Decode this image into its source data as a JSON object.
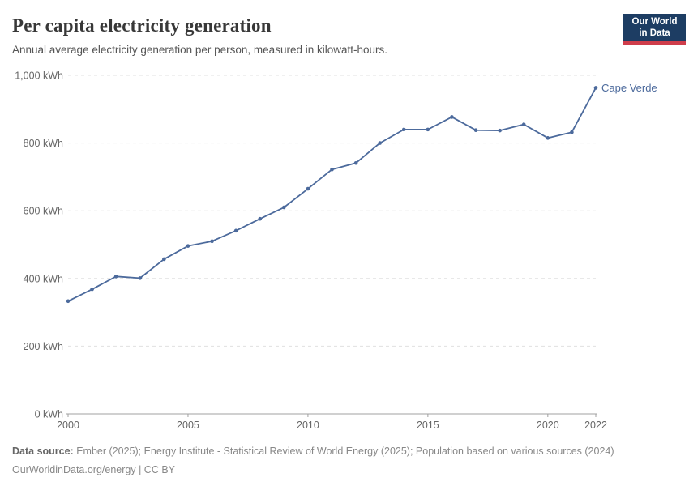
{
  "header": {
    "title": "Per capita electricity generation",
    "subtitle": "Annual average electricity generation per person, measured in kilowatt-hours.",
    "logo": {
      "line1": "Our World",
      "line2": "in Data"
    }
  },
  "chart_data": {
    "type": "line",
    "title": "Per capita electricity generation",
    "xlabel": "",
    "ylabel": "kWh",
    "xlim": [
      2000,
      2022
    ],
    "ylim": [
      0,
      1000
    ],
    "grid": "horizontal-dashed",
    "legend_position": "end-of-line-label",
    "series": [
      {
        "name": "Cape Verde",
        "color": "#4C6A9C",
        "x": [
          2000,
          2001,
          2002,
          2003,
          2004,
          2005,
          2006,
          2007,
          2008,
          2009,
          2010,
          2011,
          2012,
          2013,
          2014,
          2015,
          2016,
          2017,
          2018,
          2019,
          2020,
          2021,
          2022
        ],
        "values": [
          333,
          368,
          406,
          401,
          457,
          496,
          510,
          541,
          576,
          610,
          665,
          722,
          741,
          800,
          840,
          840,
          877,
          838,
          837,
          855,
          815,
          832,
          963
        ]
      }
    ],
    "yticks": [
      {
        "value": 0,
        "label": "0 kWh"
      },
      {
        "value": 200,
        "label": "200 kWh"
      },
      {
        "value": 400,
        "label": "400 kWh"
      },
      {
        "value": 600,
        "label": "600 kWh"
      },
      {
        "value": 800,
        "label": "800 kWh"
      },
      {
        "value": 1000,
        "label": "1,000 kWh"
      }
    ],
    "xticks": [
      {
        "value": 2000,
        "label": "2000"
      },
      {
        "value": 2005,
        "label": "2005"
      },
      {
        "value": 2010,
        "label": "2010"
      },
      {
        "value": 2015,
        "label": "2015"
      },
      {
        "value": 2020,
        "label": "2020"
      },
      {
        "value": 2022,
        "label": "2022"
      }
    ],
    "end_label": "Cape Verde"
  },
  "footer": {
    "datasource_label": "Data source:",
    "datasource_text": "Ember (2025); Energy Institute - Statistical Review of World Energy (2025); Population based on various sources (2024)",
    "license_line": "OurWorldinData.org/energy | CC BY"
  },
  "colors": {
    "line": "#4C6A9C",
    "grid": "#e0e0e0",
    "axis": "#a0a0a0",
    "tick_text": "#666666",
    "title_text": "#383838",
    "subtitle_text": "#555555",
    "footer_text": "#888888",
    "logo_bg": "#1d3d63",
    "logo_red": "#cf3d4b"
  }
}
